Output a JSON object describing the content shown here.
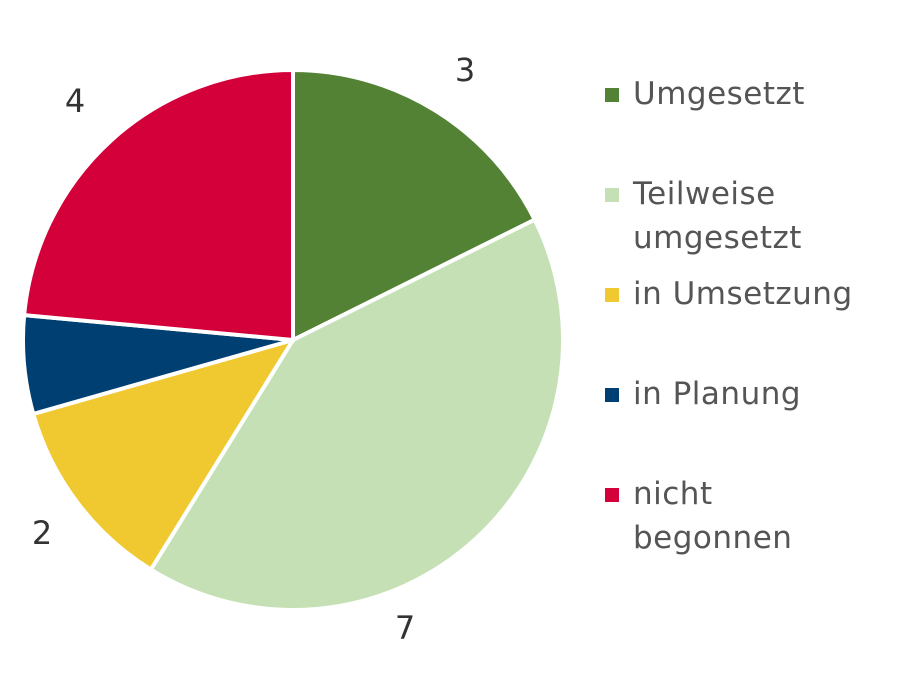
{
  "chart_data": {
    "type": "pie",
    "categories": [
      "Umgesetzt",
      "Teilweise umgesetzt",
      "in Umsetzung",
      "in Planung",
      "nicht begonnen"
    ],
    "values": [
      3,
      7,
      2,
      1,
      4
    ],
    "value_labels": [
      "3",
      "7",
      "2",
      null,
      "4"
    ],
    "colors": [
      "#548235",
      "#c5e0b4",
      "#f0c830",
      "#003f72",
      "#d4003a"
    ],
    "legend": "right"
  }
}
